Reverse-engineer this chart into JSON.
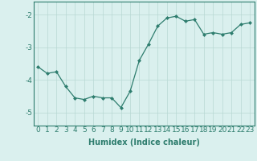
{
  "x": [
    0,
    1,
    2,
    3,
    4,
    5,
    6,
    7,
    8,
    9,
    10,
    11,
    12,
    13,
    14,
    15,
    16,
    17,
    18,
    19,
    20,
    21,
    22,
    23
  ],
  "y": [
    -3.6,
    -3.8,
    -3.75,
    -4.2,
    -4.55,
    -4.6,
    -4.5,
    -4.55,
    -4.55,
    -4.85,
    -4.35,
    -3.4,
    -2.9,
    -2.35,
    -2.1,
    -2.05,
    -2.2,
    -2.15,
    -2.6,
    -2.55,
    -2.6,
    -2.55,
    -2.3,
    -2.25
  ],
  "xlim": [
    -0.5,
    23.5
  ],
  "ylim": [
    -5.4,
    -1.6
  ],
  "yticks": [
    -5,
    -4,
    -3,
    -2
  ],
  "xticks": [
    0,
    1,
    2,
    3,
    4,
    5,
    6,
    7,
    8,
    9,
    10,
    11,
    12,
    13,
    14,
    15,
    16,
    17,
    18,
    19,
    20,
    21,
    22,
    23
  ],
  "xlabel": "Humidex (Indice chaleur)",
  "line_color": "#2e7d6e",
  "marker": "D",
  "marker_size": 2.0,
  "bg_color": "#daf0ee",
  "grid_color": "#b8d8d4",
  "axis_label_fontsize": 7,
  "tick_fontsize": 6.5,
  "spine_color": "#2e7d6e"
}
